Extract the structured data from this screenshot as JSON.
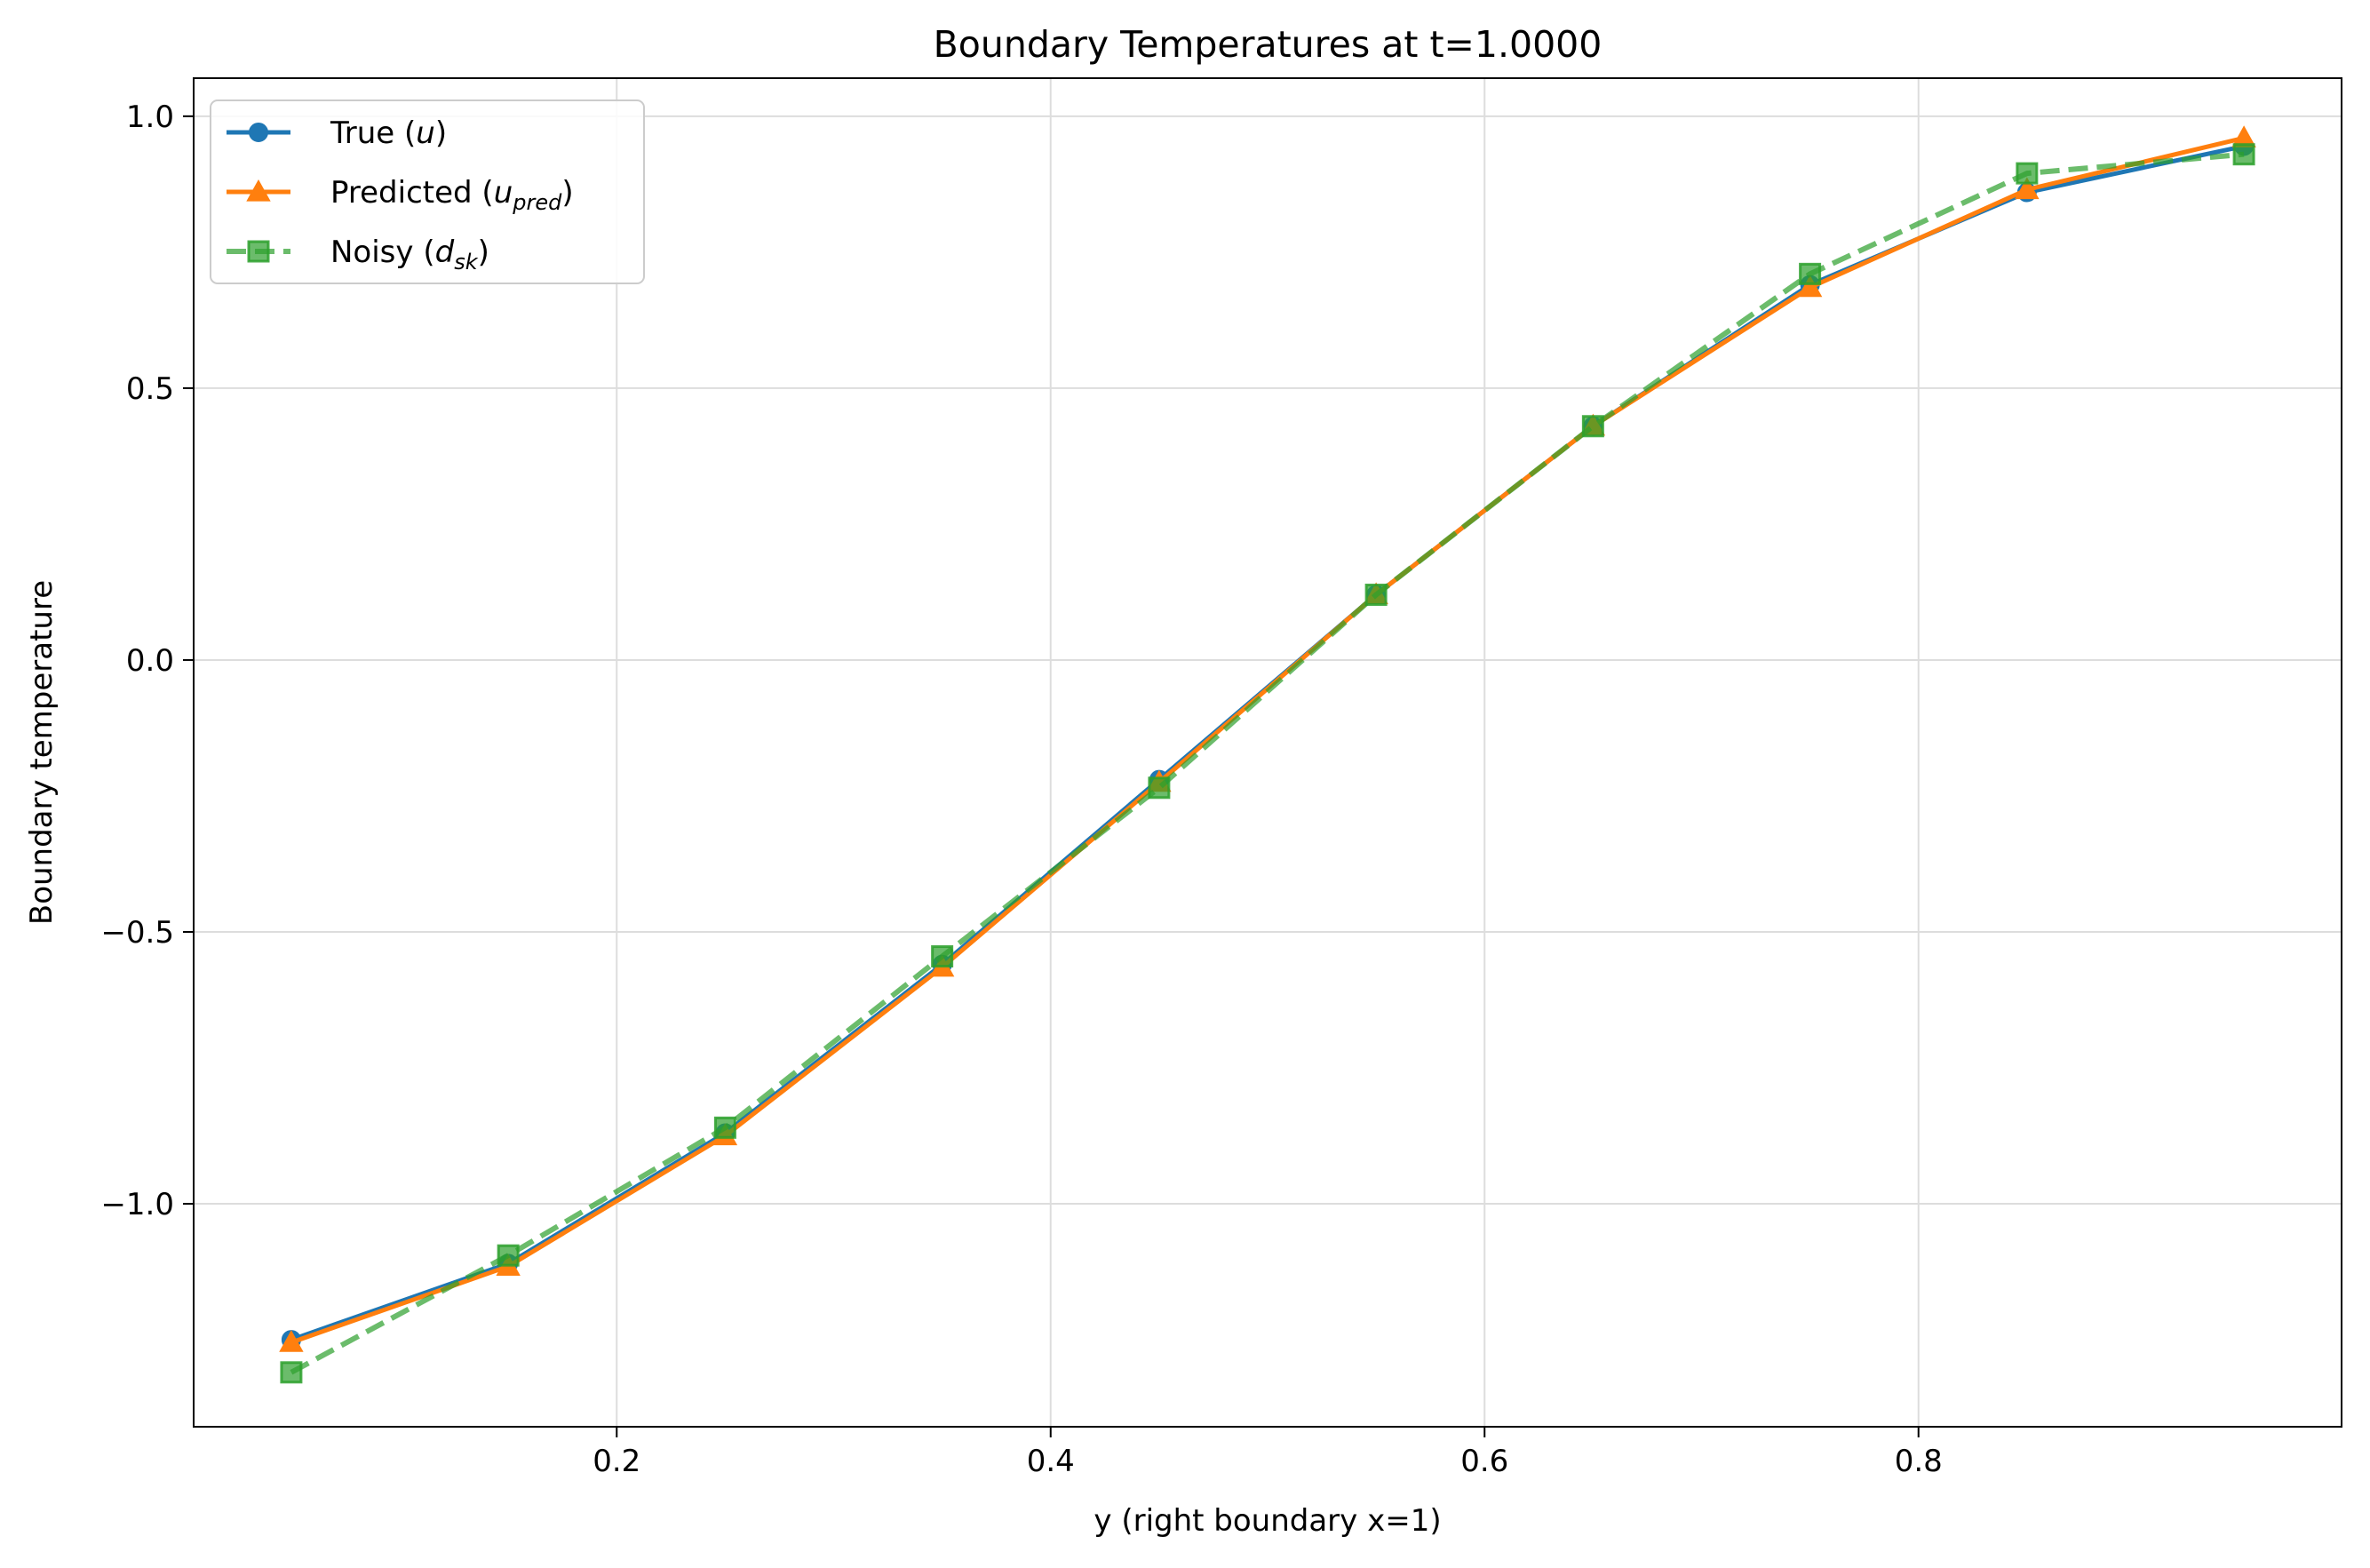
{
  "chart_data": {
    "type": "line",
    "title": "Boundary Temperatures at t=1.0000",
    "xlabel": "y (right boundary x=1)",
    "ylabel": "Boundary temperature",
    "xlim": [
      0.005,
      0.995
    ],
    "ylim": [
      -1.41,
      1.07
    ],
    "xticks": [
      0.2,
      0.4,
      0.6,
      0.8
    ],
    "xtick_labels": [
      "0.2",
      "0.4",
      "0.6",
      "0.8"
    ],
    "yticks": [
      1.0,
      0.5,
      0.0,
      -0.5,
      -1.0
    ],
    "ytick_labels": [
      "1.0",
      "0.5",
      "0.0",
      "−0.5",
      "−1.0"
    ],
    "grid": true,
    "legend_position": "upper-left",
    "x": [
      0.05,
      0.15,
      0.25,
      0.35,
      0.45,
      0.55,
      0.65,
      0.75,
      0.85,
      0.95
    ],
    "series": [
      {
        "key": "true",
        "legend_base": "True (",
        "legend_var": "u",
        "legend_sub": "",
        "legend_end": ")",
        "color": "#1f77b4",
        "marker": "circle",
        "linestyle": "solid",
        "values": [
          -1.25,
          -1.11,
          -0.87,
          -0.56,
          -0.22,
          0.12,
          0.43,
          0.69,
          0.86,
          0.945
        ]
      },
      {
        "key": "predicted",
        "legend_base": "Predicted (",
        "legend_var": "u",
        "legend_sub": "pred",
        "legend_end": ")",
        "color": "#ff7f0e",
        "marker": "triangle",
        "linestyle": "solid",
        "values": [
          -1.255,
          -1.115,
          -0.875,
          -0.565,
          -0.225,
          0.12,
          0.43,
          0.685,
          0.865,
          0.96
        ]
      },
      {
        "key": "noisy",
        "legend_base": "Noisy (",
        "legend_var": "d",
        "legend_sub": "sk",
        "legend_end": ")",
        "color": "#2ca02c",
        "marker": "square",
        "linestyle": "dashed",
        "values": [
          -1.31,
          -1.095,
          -0.86,
          -0.545,
          -0.235,
          0.12,
          0.43,
          0.71,
          0.895,
          0.93
        ]
      }
    ]
  }
}
